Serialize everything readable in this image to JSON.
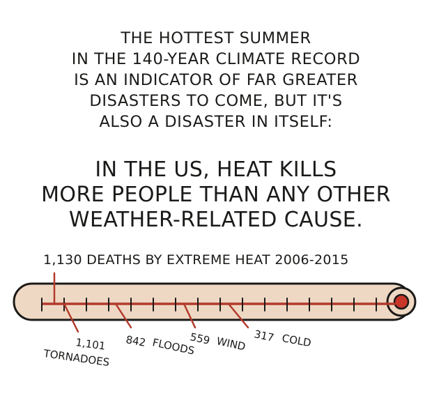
{
  "intro": {
    "lines": [
      "THE HOTTEST SUMMER",
      "IN THE 140-YEAR CLIMATE RECORD",
      "IS AN INDICATOR OF FAR GREATER",
      "DISASTERS TO COME, BUT IT'S",
      "ALSO A DISASTER IN ITSELF:"
    ]
  },
  "headline": {
    "lines": [
      "IN THE US, HEAT KILLS",
      "MORE PEOPLE THAN ANY OTHER",
      "WEATHER-RELATED CAUSE."
    ]
  },
  "thermometer": {
    "heat_label": "1,130 DEATHS BY EXTREME HEAT 2006-2015",
    "markers": [
      {
        "value": "1,101",
        "cause": "TORNADOES"
      },
      {
        "value": "842",
        "cause": "FLOODS"
      },
      {
        "value": "559",
        "cause": "WIND"
      },
      {
        "value": "317",
        "cause": "COLD"
      }
    ]
  },
  "colors": {
    "ink": "#1b1a18",
    "glass": "#efd8c3",
    "mercury": "#b23a2c",
    "bulb_red": "#c8362a"
  }
}
